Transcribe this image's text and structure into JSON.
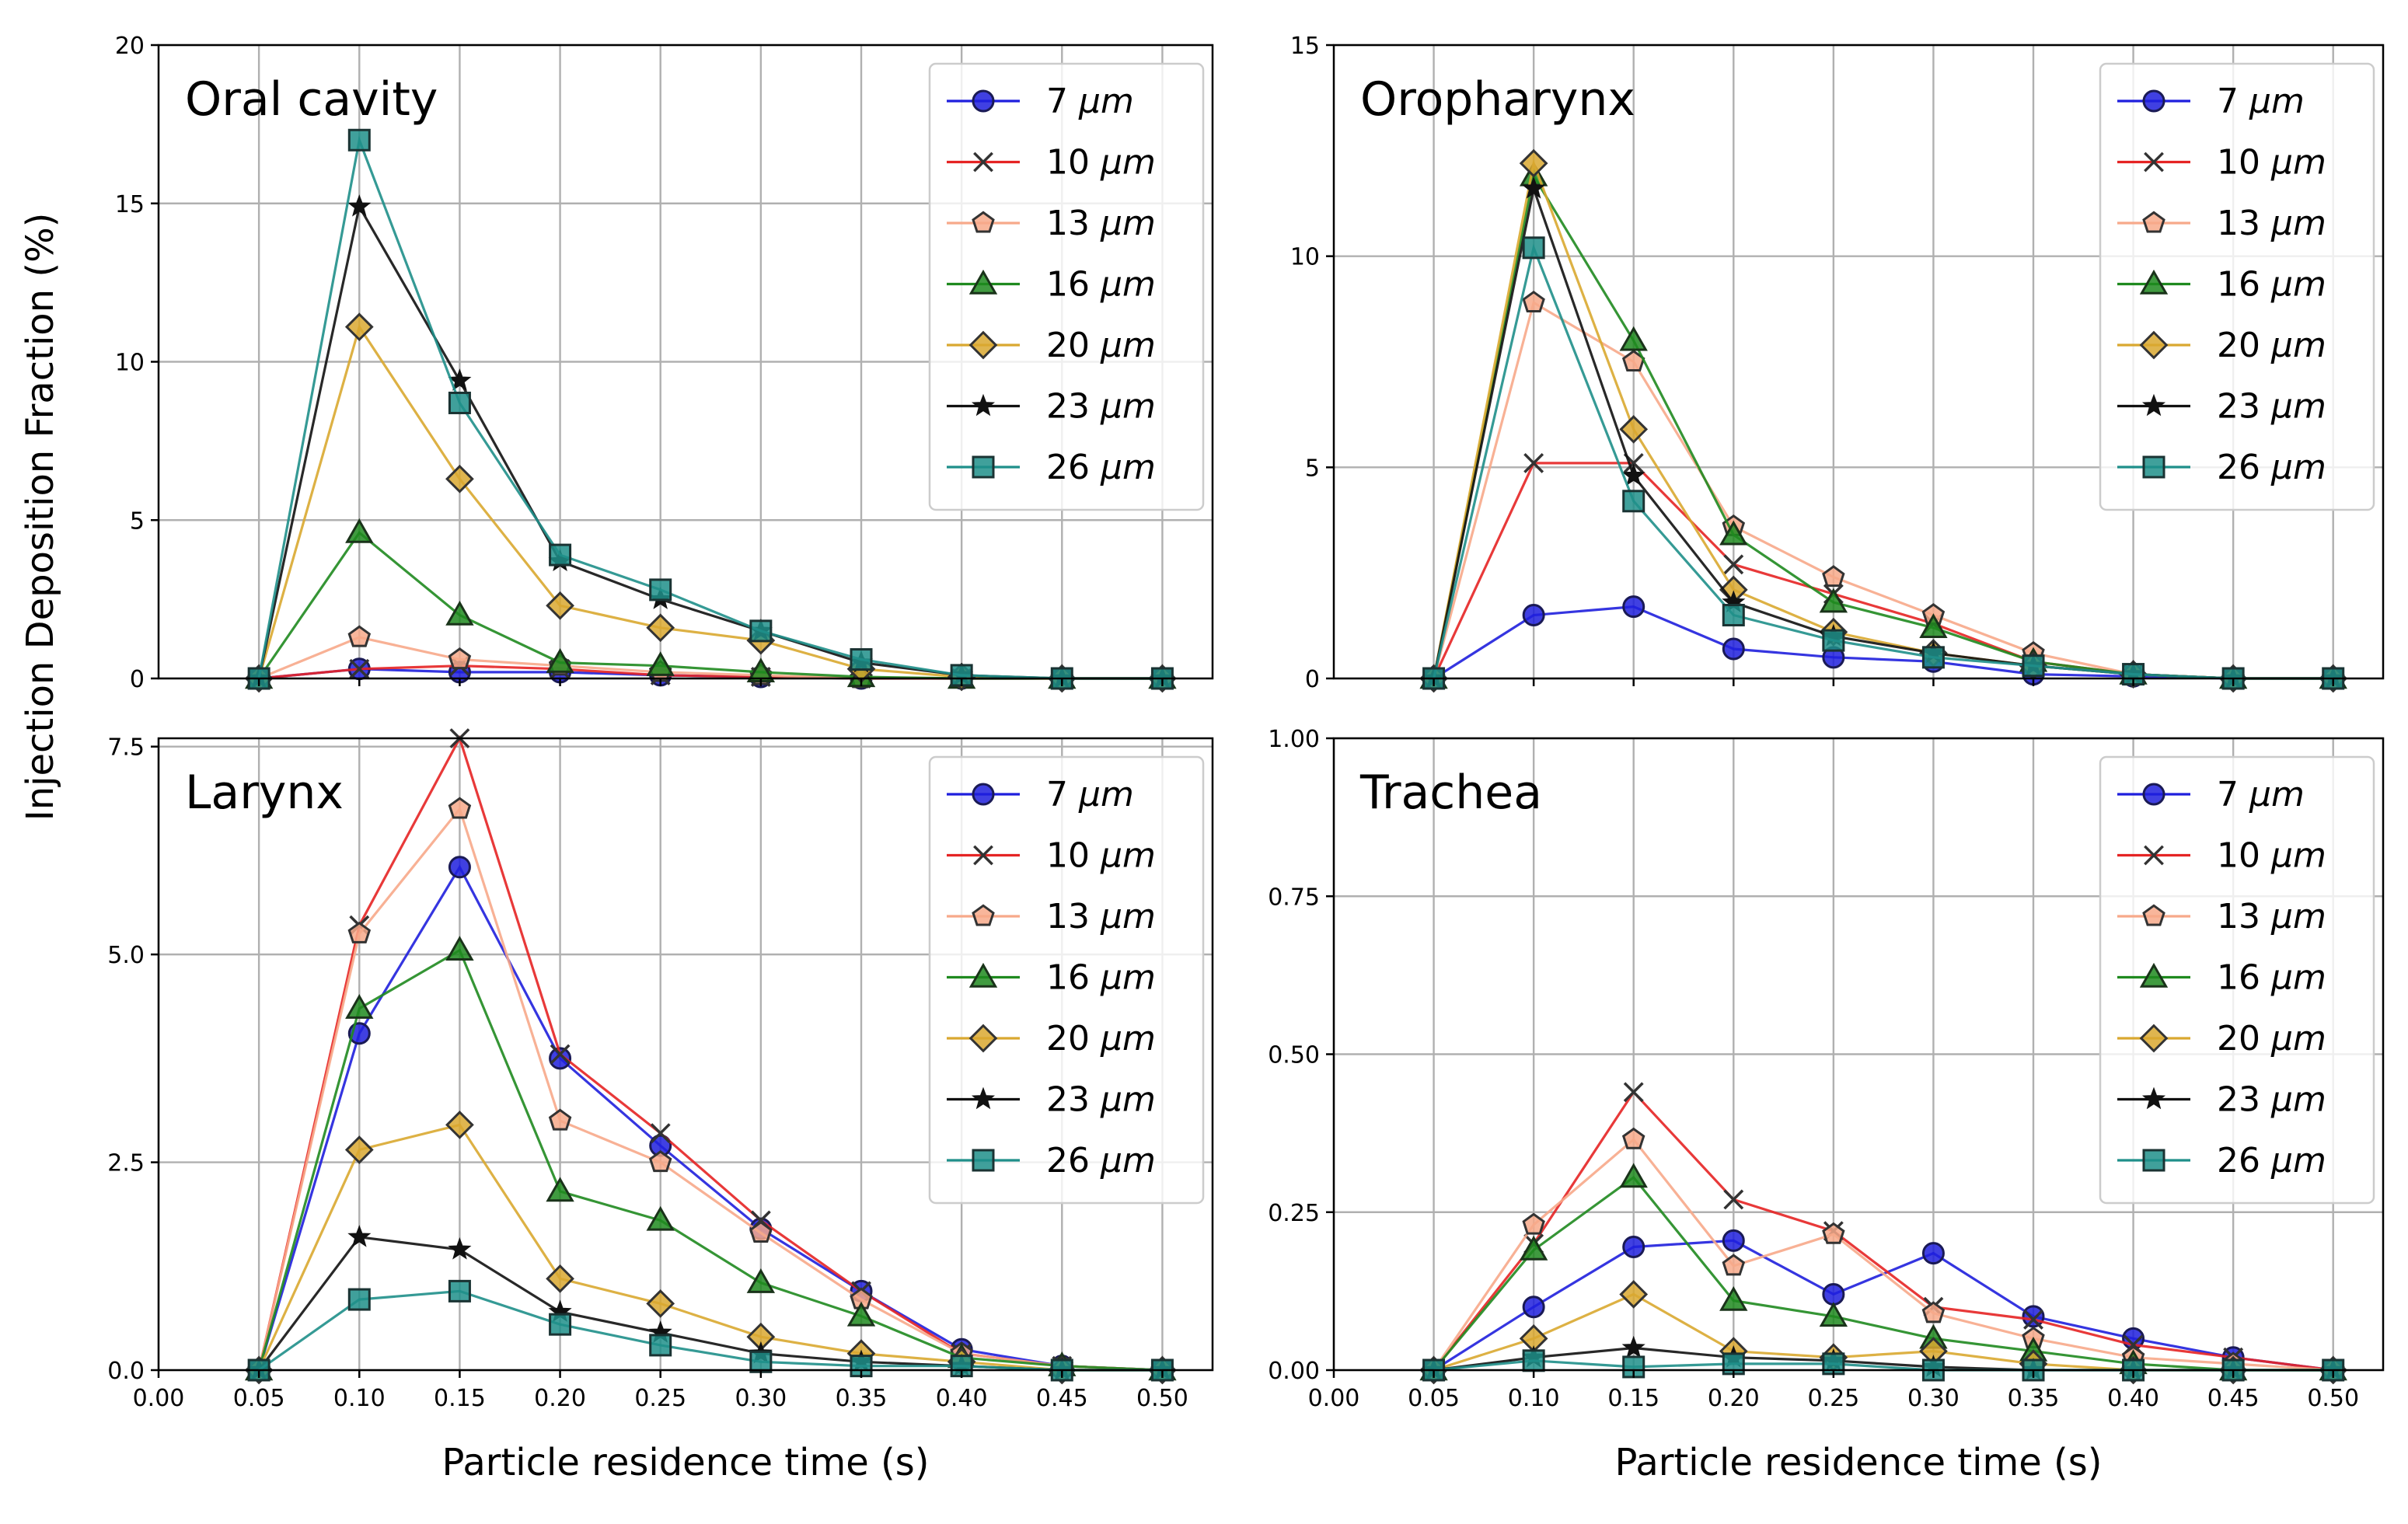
{
  "figure": {
    "ylabel": "Injection Deposition Fraction (%)",
    "xlabel": "Particle residence time (s)"
  },
  "series_style": [
    {
      "name": "7 µm",
      "label_num": "7",
      "unit": "µm",
      "color": "#1f1fdd",
      "edge": "#1a1a55",
      "marker": "circle"
    },
    {
      "name": "10 µm",
      "label_num": "10",
      "unit": "µm",
      "color": "#e52424",
      "edge": "#333333",
      "marker": "x"
    },
    {
      "name": "13 µm",
      "label_num": "13",
      "unit": "µm",
      "color": "#f7a98a",
      "edge": "#333333",
      "marker": "pentagon"
    },
    {
      "name": "16 µm",
      "label_num": "16",
      "unit": "µm",
      "color": "#1f8a1f",
      "edge": "#1a331a",
      "marker": "triangle"
    },
    {
      "name": "20 µm",
      "label_num": "20",
      "unit": "µm",
      "color": "#d9a830",
      "edge": "#333333",
      "marker": "diamond"
    },
    {
      "name": "23 µm",
      "label_num": "23",
      "unit": "µm",
      "color": "#111111",
      "edge": "#111111",
      "marker": "star"
    },
    {
      "name": "26 µm",
      "label_num": "26",
      "unit": "µm",
      "color": "#1f8f8a",
      "edge": "#1a3333",
      "marker": "square"
    }
  ],
  "chart_data": [
    {
      "type": "line",
      "title": "Oral cavity",
      "xlabel": "",
      "ylabel": "Injection Deposition Fraction (%)",
      "xlim": [
        0.0,
        0.525
      ],
      "ylim": [
        0,
        20
      ],
      "xticks": [
        0.05,
        0.1,
        0.15,
        0.2,
        0.25,
        0.3,
        0.35,
        0.4,
        0.45,
        0.5
      ],
      "xtick_labels": [],
      "yticks": [
        0,
        5,
        10,
        15,
        20
      ],
      "ytick_labels": [
        "0",
        "5",
        "10",
        "15",
        "20"
      ],
      "grid": true,
      "legend": "upper right",
      "x": [
        0.05,
        0.1,
        0.15,
        0.2,
        0.25,
        0.3,
        0.35,
        0.4,
        0.45,
        0.5
      ],
      "series": [
        {
          "name": "7 µm",
          "values": [
            0.0,
            0.3,
            0.2,
            0.2,
            0.1,
            0.05,
            0.0,
            0.0,
            0.0,
            0.0
          ]
        },
        {
          "name": "10 µm",
          "values": [
            0.0,
            0.3,
            0.4,
            0.3,
            0.1,
            0.05,
            0.0,
            0.0,
            0.0,
            0.0
          ]
        },
        {
          "name": "13 µm",
          "values": [
            0.0,
            1.3,
            0.6,
            0.4,
            0.2,
            0.1,
            0.0,
            0.0,
            0.0,
            0.0
          ]
        },
        {
          "name": "16 µm",
          "values": [
            0.0,
            4.6,
            2.0,
            0.5,
            0.4,
            0.2,
            0.05,
            0.0,
            0.0,
            0.0
          ]
        },
        {
          "name": "20 µm",
          "values": [
            0.0,
            11.1,
            6.3,
            2.3,
            1.6,
            1.2,
            0.3,
            0.05,
            0.0,
            0.0
          ]
        },
        {
          "name": "23 µm",
          "values": [
            0.0,
            14.9,
            9.4,
            3.7,
            2.5,
            1.5,
            0.5,
            0.1,
            0.0,
            0.0
          ]
        },
        {
          "name": "26 µm",
          "values": [
            0.0,
            17.0,
            8.7,
            3.9,
            2.8,
            1.5,
            0.6,
            0.1,
            0.0,
            0.0
          ]
        }
      ]
    },
    {
      "type": "line",
      "title": "Oropharynx",
      "xlabel": "",
      "ylabel": "",
      "xlim": [
        0.0,
        0.525
      ],
      "ylim": [
        0,
        15
      ],
      "xticks": [
        0.05,
        0.1,
        0.15,
        0.2,
        0.25,
        0.3,
        0.35,
        0.4,
        0.45,
        0.5
      ],
      "xtick_labels": [],
      "yticks": [
        0,
        5,
        10,
        15
      ],
      "ytick_labels": [
        "0",
        "5",
        "10",
        "15"
      ],
      "grid": true,
      "legend": "upper right",
      "x": [
        0.05,
        0.1,
        0.15,
        0.2,
        0.25,
        0.3,
        0.35,
        0.4,
        0.45,
        0.5
      ],
      "series": [
        {
          "name": "7 µm",
          "values": [
            0.0,
            1.5,
            1.7,
            0.7,
            0.5,
            0.4,
            0.1,
            0.05,
            0.0,
            0.0
          ]
        },
        {
          "name": "10 µm",
          "values": [
            0.0,
            5.1,
            5.1,
            2.7,
            2.0,
            1.3,
            0.4,
            0.1,
            0.0,
            0.0
          ]
        },
        {
          "name": "13 µm",
          "values": [
            0.0,
            8.9,
            7.5,
            3.6,
            2.4,
            1.5,
            0.6,
            0.1,
            0.0,
            0.0
          ]
        },
        {
          "name": "16 µm",
          "values": [
            0.0,
            11.9,
            8.0,
            3.4,
            1.8,
            1.2,
            0.4,
            0.1,
            0.0,
            0.0
          ]
        },
        {
          "name": "20 µm",
          "values": [
            0.0,
            12.2,
            5.9,
            2.1,
            1.1,
            0.6,
            0.3,
            0.1,
            0.0,
            0.0
          ]
        },
        {
          "name": "23 µm",
          "values": [
            0.0,
            11.6,
            4.8,
            1.8,
            1.0,
            0.6,
            0.3,
            0.1,
            0.0,
            0.0
          ]
        },
        {
          "name": "26 µm",
          "values": [
            0.0,
            10.2,
            4.2,
            1.5,
            0.9,
            0.5,
            0.3,
            0.1,
            0.0,
            0.0
          ]
        }
      ]
    },
    {
      "type": "line",
      "title": "Larynx",
      "xlabel": "Particle residence time (s)",
      "ylabel": "",
      "xlim": [
        0.0,
        0.525
      ],
      "ylim": [
        0,
        7.6
      ],
      "xticks": [
        0.0,
        0.05,
        0.1,
        0.15,
        0.2,
        0.25,
        0.3,
        0.35,
        0.4,
        0.45,
        0.5
      ],
      "xtick_labels": [
        "0.00",
        "0.05",
        "0.10",
        "0.15",
        "0.20",
        "0.25",
        "0.30",
        "0.35",
        "0.40",
        "0.45",
        "0.50"
      ],
      "yticks": [
        0,
        2.5,
        5.0,
        7.5
      ],
      "ytick_labels": [
        "0.0",
        "2.5",
        "5.0",
        "7.5"
      ],
      "grid": true,
      "legend": "upper right",
      "x": [
        0.05,
        0.1,
        0.15,
        0.2,
        0.25,
        0.3,
        0.35,
        0.4,
        0.45,
        0.5
      ],
      "series": [
        {
          "name": "7 µm",
          "values": [
            0.0,
            4.05,
            6.05,
            3.75,
            2.7,
            1.7,
            0.95,
            0.25,
            0.05,
            0.0
          ]
        },
        {
          "name": "10 µm",
          "values": [
            0.0,
            5.35,
            7.6,
            3.8,
            2.85,
            1.8,
            0.95,
            0.2,
            0.05,
            0.0
          ]
        },
        {
          "name": "13 µm",
          "values": [
            0.0,
            5.25,
            6.75,
            3.0,
            2.5,
            1.65,
            0.85,
            0.2,
            0.05,
            0.0
          ]
        },
        {
          "name": "16 µm",
          "values": [
            0.0,
            4.35,
            5.05,
            2.15,
            1.8,
            1.05,
            0.65,
            0.15,
            0.05,
            0.0
          ]
        },
        {
          "name": "20 µm",
          "values": [
            0.0,
            2.65,
            2.95,
            1.1,
            0.8,
            0.4,
            0.2,
            0.1,
            0.0,
            0.0
          ]
        },
        {
          "name": "23 µm",
          "values": [
            0.0,
            1.6,
            1.45,
            0.7,
            0.45,
            0.2,
            0.1,
            0.05,
            0.0,
            0.0
          ]
        },
        {
          "name": "26 µm",
          "values": [
            0.0,
            0.85,
            0.95,
            0.55,
            0.3,
            0.1,
            0.05,
            0.05,
            0.0,
            0.0
          ]
        }
      ]
    },
    {
      "type": "line",
      "title": "Trachea",
      "xlabel": "Particle residence time (s)",
      "ylabel": "",
      "xlim": [
        0.0,
        0.525
      ],
      "ylim": [
        0,
        1.0
      ],
      "xticks": [
        0.0,
        0.05,
        0.1,
        0.15,
        0.2,
        0.25,
        0.3,
        0.35,
        0.4,
        0.45,
        0.5
      ],
      "xtick_labels": [
        "0.00",
        "0.05",
        "0.10",
        "0.15",
        "0.20",
        "0.25",
        "0.30",
        "0.35",
        "0.40",
        "0.45",
        "0.50"
      ],
      "yticks": [
        0,
        0.25,
        0.5,
        0.75,
        1.0
      ],
      "ytick_labels": [
        "0.00",
        "0.25",
        "0.50",
        "0.75",
        "1.00"
      ],
      "grid": true,
      "legend": "upper right",
      "x": [
        0.05,
        0.1,
        0.15,
        0.2,
        0.25,
        0.3,
        0.35,
        0.4,
        0.45,
        0.5
      ],
      "series": [
        {
          "name": "7 µm",
          "values": [
            0.0,
            0.1,
            0.195,
            0.205,
            0.12,
            0.185,
            0.085,
            0.05,
            0.02,
            0.0
          ]
        },
        {
          "name": "10 µm",
          "values": [
            0.0,
            0.2,
            0.44,
            0.27,
            0.22,
            0.1,
            0.08,
            0.04,
            0.02,
            0.0
          ]
        },
        {
          "name": "13 µm",
          "values": [
            0.0,
            0.23,
            0.365,
            0.165,
            0.215,
            0.09,
            0.05,
            0.02,
            0.01,
            0.0
          ]
        },
        {
          "name": "16 µm",
          "values": [
            0.0,
            0.19,
            0.305,
            0.11,
            0.085,
            0.05,
            0.03,
            0.01,
            0.0,
            0.0
          ]
        },
        {
          "name": "20 µm",
          "values": [
            0.0,
            0.05,
            0.12,
            0.03,
            0.02,
            0.03,
            0.01,
            0.0,
            0.0,
            0.0
          ]
        },
        {
          "name": "23 µm",
          "values": [
            0.0,
            0.02,
            0.035,
            0.02,
            0.015,
            0.005,
            0.0,
            0.0,
            0.0,
            0.0
          ]
        },
        {
          "name": "26 µm",
          "values": [
            0.0,
            0.015,
            0.005,
            0.01,
            0.01,
            0.0,
            0.0,
            0.0,
            0.0,
            0.0
          ]
        }
      ]
    }
  ]
}
